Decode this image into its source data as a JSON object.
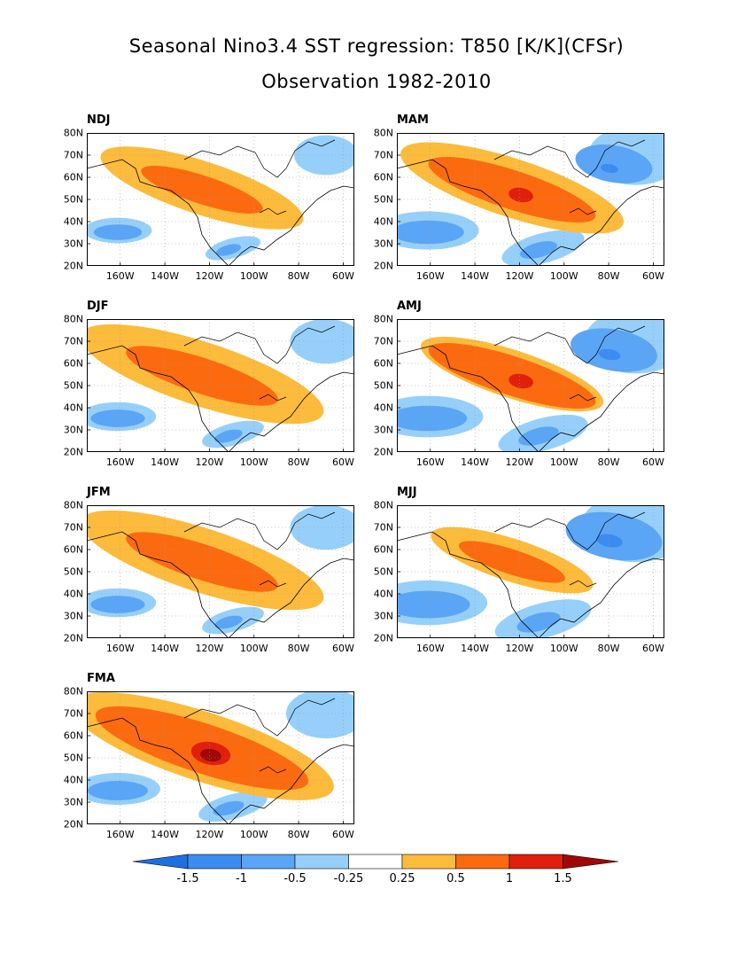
{
  "title_line1": "Seasonal Nino3.4 SST regression: T850 [K/K](CFSr)",
  "title_line2": "Observation 1982-2010",
  "lat_labels": [
    "80N",
    "70N",
    "60N",
    "50N",
    "40N",
    "30N",
    "20N"
  ],
  "lon_labels": [
    "160W",
    "140W",
    "120W",
    "100W",
    "80W",
    "60W"
  ],
  "panels": [
    {
      "label": "NDJ",
      "col": 0,
      "row": 0,
      "red": 0.8,
      "orange": 1.0,
      "blue": 0.8
    },
    {
      "label": "MAM",
      "col": 1,
      "row": 0,
      "red": 1.1,
      "orange": 1.1,
      "blue": 1.2
    },
    {
      "label": "DJF",
      "col": 0,
      "row": 1,
      "red": 1.0,
      "orange": 1.2,
      "blue": 0.9
    },
    {
      "label": "AMJ",
      "col": 1,
      "row": 1,
      "red": 1.1,
      "orange": 0.9,
      "blue": 1.3
    },
    {
      "label": "JFM",
      "col": 0,
      "row": 2,
      "red": 1.0,
      "orange": 1.2,
      "blue": 0.9
    },
    {
      "label": "MJJ",
      "col": 1,
      "row": 2,
      "red": 0.7,
      "orange": 0.8,
      "blue": 1.4
    },
    {
      "label": "FMA",
      "col": 0,
      "row": 3,
      "red": 1.4,
      "orange": 1.3,
      "blue": 1.0
    }
  ],
  "colorbar": {
    "labels": [
      "-1.5",
      "-1",
      "-0.5",
      "-0.25",
      "0.25",
      "0.5",
      "1",
      "1.5"
    ],
    "colors": [
      "#1e6fe0",
      "#3c8cf0",
      "#5aa5f5",
      "#96d0fa",
      "#ffffff",
      "#fdbb3c",
      "#fc6a10",
      "#e0200a",
      "#a00808"
    ]
  }
}
